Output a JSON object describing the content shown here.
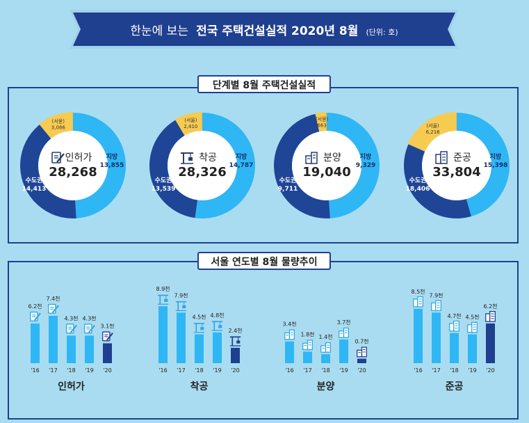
{
  "header": {
    "prefix": "한눈에 보는",
    "main": "전국 주택건설실적 2020년 8월",
    "unit": "(단위: 호)"
  },
  "section1": {
    "title": "단계별 8월 주택건설실적"
  },
  "section2": {
    "title": "서울 연도별 8월 물량추이"
  },
  "colors": {
    "seoul": "#f6cb52",
    "capital": "#1f4596",
    "local": "#2fb6f4",
    "bar": "#2fb6f4",
    "bar_current": "#1f3f8f"
  },
  "chart_data": [
    {
      "type": "pie",
      "name": "인허가",
      "total": "28,268",
      "icon": "permit-icon",
      "slices": [
        {
          "label": "지방",
          "value": 13855,
          "text": "13,855"
        },
        {
          "label": "수도권",
          "value": 14413,
          "text": "14,413"
        },
        {
          "label": "(서울)",
          "value": 3086,
          "text": "3,086"
        }
      ]
    },
    {
      "type": "pie",
      "name": "착공",
      "total": "28,326",
      "icon": "crane-icon",
      "slices": [
        {
          "label": "지방",
          "value": 14787,
          "text": "14,787"
        },
        {
          "label": "수도권",
          "value": 13539,
          "text": "13,539"
        },
        {
          "label": "(서울)",
          "value": 2410,
          "text": "2,410"
        }
      ]
    },
    {
      "type": "pie",
      "name": "분양",
      "total": "19,040",
      "icon": "sale-icon",
      "slices": [
        {
          "label": "지방",
          "value": 9329,
          "text": "9,329"
        },
        {
          "label": "수도권",
          "value": 9711,
          "text": "9,711"
        },
        {
          "label": "(서울)",
          "value": 663,
          "text": "663"
        }
      ]
    },
    {
      "type": "pie",
      "name": "준공",
      "total": "33,804",
      "icon": "building-icon",
      "slices": [
        {
          "label": "지방",
          "value": 15398,
          "text": "15,398"
        },
        {
          "label": "수도권",
          "value": 18406,
          "text": "18,406"
        },
        {
          "label": "(서울)",
          "value": 6216,
          "text": "6,216"
        }
      ]
    },
    {
      "type": "bar",
      "name": "인허가",
      "icon": "permit-icon",
      "categories": [
        "'16",
        "'17",
        "'18",
        "'19",
        "'20"
      ],
      "values": [
        6.2,
        7.4,
        4.3,
        4.3,
        3.1
      ],
      "labels": [
        "6.2천",
        "7.4천",
        "4.3천",
        "4.3천",
        "3.1천"
      ]
    },
    {
      "type": "bar",
      "name": "착공",
      "icon": "crane-icon",
      "categories": [
        "'16",
        "'17",
        "'18",
        "'19",
        "'20"
      ],
      "values": [
        8.9,
        7.9,
        4.5,
        4.8,
        2.4
      ],
      "labels": [
        "8.9천",
        "7.9천",
        "4.5천",
        "4.8천",
        "2.4천"
      ]
    },
    {
      "type": "bar",
      "name": "분양",
      "icon": "sale-icon",
      "categories": [
        "'16",
        "'17",
        "'18",
        "'19",
        "'20"
      ],
      "values": [
        3.4,
        1.8,
        1.4,
        3.7,
        0.7
      ],
      "labels": [
        "3.4천",
        "1.8천",
        "1.4천",
        "3.7천",
        "0.7천"
      ]
    },
    {
      "type": "bar",
      "name": "준공",
      "icon": "building-icon",
      "categories": [
        "'16",
        "'17",
        "'18",
        "'19",
        "'20"
      ],
      "values": [
        8.5,
        7.9,
        4.7,
        4.5,
        6.2
      ],
      "labels": [
        "8.5천",
        "7.9천",
        "4.7천",
        "4.5천",
        "6.2천"
      ]
    }
  ]
}
